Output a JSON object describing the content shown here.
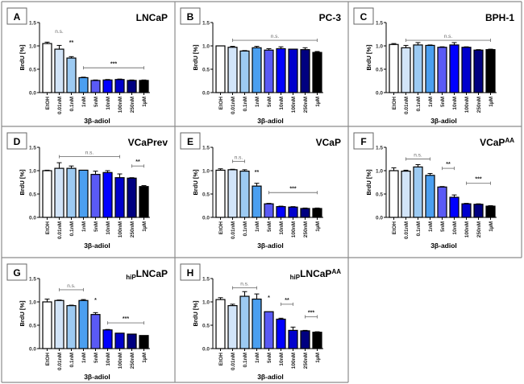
{
  "figure": {
    "bar_colors": [
      "#ffffff",
      "#d2e4f8",
      "#9ccaf2",
      "#4b9ff0",
      "#5a5af5",
      "#0000ff",
      "#0000cc",
      "#000080",
      "#000000"
    ],
    "frame_color": "#8c8c8c"
  },
  "chart_data": [
    {
      "type": "bar",
      "panel": "A",
      "title": "LNCaP",
      "title_sub": "",
      "title_sup": "",
      "xlabel": "3β-adiol",
      "ylabel": "BrdU [%]",
      "ylim": [
        0,
        1.5
      ],
      "yticks": [
        "0.0",
        "0.5",
        "1.0",
        "1.5"
      ],
      "categories": [
        "EtOH",
        "0.01nM",
        "0.1nM",
        "1nM",
        "5nM",
        "10nM",
        "100nM",
        "250nM",
        "1µM"
      ],
      "values": [
        1.05,
        0.93,
        0.74,
        0.32,
        0.26,
        0.27,
        0.28,
        0.26,
        0.26
      ],
      "errors": [
        0.03,
        0.08,
        0.03,
        0.01,
        0.01,
        0.01,
        0.01,
        0.01,
        0.01
      ],
      "annotations": [
        {
          "text": "n.s.",
          "from": 1,
          "to": 1,
          "y": 1.22,
          "bracket": false
        },
        {
          "text": "**",
          "from": 2,
          "to": 2,
          "y": 0.98,
          "bracket": false
        },
        {
          "text": "***",
          "from": 3,
          "to": 8,
          "y": 0.53,
          "bracket": true
        }
      ]
    },
    {
      "type": "bar",
      "panel": "B",
      "title": "PC-3",
      "title_sub": "",
      "title_sup": "",
      "xlabel": "3β-adiol",
      "ylabel": "BrdU [%]",
      "ylim": [
        0,
        1.5
      ],
      "yticks": [
        "0.0",
        "0.5",
        "1.0",
        "1.5"
      ],
      "categories": [
        "EtOH",
        "0.01nM",
        "0.1nM",
        "1nM",
        "5nM",
        "10nM",
        "100nM",
        "250nM",
        "1µM"
      ],
      "values": [
        1.0,
        0.97,
        0.89,
        0.96,
        0.91,
        0.94,
        0.93,
        0.92,
        0.86
      ],
      "errors": [
        0.0,
        0.02,
        0.01,
        0.03,
        0.03,
        0.04,
        0.0,
        0.04,
        0.02
      ],
      "annotations": [
        {
          "text": "n.s.",
          "from": 1,
          "to": 8,
          "y": 1.12,
          "bracket": true
        }
      ]
    },
    {
      "type": "bar",
      "panel": "C",
      "title": "BPH-1",
      "title_sub": "",
      "title_sup": "",
      "xlabel": "3β-adiol",
      "ylabel": "BrdU [%]",
      "ylim": [
        0,
        1.5
      ],
      "yticks": [
        "0.0",
        "0.5",
        "1.0",
        "1.5"
      ],
      "categories": [
        "EtOH",
        "0.01nM",
        "0.1nM",
        "1nM",
        "5nM",
        "10nM",
        "100nM",
        "250nM",
        "1µM"
      ],
      "values": [
        1.03,
        0.96,
        1.02,
        1.01,
        0.97,
        1.02,
        0.97,
        0.91,
        0.92
      ],
      "errors": [
        0.02,
        0.05,
        0.05,
        0.01,
        0.01,
        0.05,
        0.01,
        0.01,
        0.01
      ],
      "annotations": [
        {
          "text": "n.s.",
          "from": 1,
          "to": 8,
          "y": 1.12,
          "bracket": true
        }
      ]
    },
    {
      "type": "bar",
      "panel": "D",
      "title": "VCaPrev",
      "title_sub": "",
      "title_sup": "",
      "xlabel": "3β-adiol",
      "ylabel": "BrdU [%]",
      "ylim": [
        0,
        1.5
      ],
      "yticks": [
        "0.0",
        "0.5",
        "1.0",
        "1.5"
      ],
      "categories": [
        "EtOH",
        "0.01nM",
        "0.1nM",
        "1nM",
        "5nM",
        "10nM",
        "100nM",
        "250nM",
        "1µM"
      ],
      "values": [
        1.0,
        1.05,
        1.05,
        1.01,
        0.92,
        0.96,
        0.85,
        0.84,
        0.66
      ],
      "errors": [
        0.01,
        0.12,
        0.05,
        0.0,
        0.07,
        0.04,
        0.08,
        0.01,
        0.02
      ],
      "annotations": [
        {
          "text": "n.s.",
          "from": 1,
          "to": 6,
          "y": 1.3,
          "bracket": true
        },
        {
          "text": "**",
          "from": 7,
          "to": 8,
          "y": 1.1,
          "bracket": true
        }
      ]
    },
    {
      "type": "bar",
      "panel": "E",
      "title": "VCaP",
      "title_sub": "",
      "title_sup": "",
      "xlabel": "3β-adiol",
      "ylabel": "BrdU [%]",
      "ylim": [
        0,
        1.5
      ],
      "yticks": [
        "0.0",
        "0.5",
        "1.0",
        "1.5"
      ],
      "categories": [
        "EtOH",
        "0.01nM",
        "0.1nM",
        "1nM",
        "5nM",
        "10nM",
        "100nM",
        "250nM",
        "1µM"
      ],
      "values": [
        1.01,
        1.02,
        0.99,
        0.67,
        0.29,
        0.23,
        0.22,
        0.19,
        0.19
      ],
      "errors": [
        0.03,
        0.01,
        0.03,
        0.06,
        0.01,
        0.01,
        0.01,
        0.01,
        0.01
      ],
      "annotations": [
        {
          "text": "n.s.",
          "from": 1,
          "to": 2,
          "y": 1.2,
          "bracket": true
        },
        {
          "text": "**",
          "from": 3,
          "to": 3,
          "y": 0.88,
          "bracket": false
        },
        {
          "text": "***",
          "from": 4,
          "to": 8,
          "y": 0.53,
          "bracket": true
        }
      ]
    },
    {
      "type": "bar",
      "panel": "F",
      "title": "VCaP",
      "title_sub": "",
      "title_sup": "AA",
      "xlabel": "3β-adiol",
      "ylabel": "BrdU [%]",
      "ylim": [
        0,
        1.5
      ],
      "yticks": [
        "0.0",
        "0.5",
        "1.0",
        "1.5"
      ],
      "categories": [
        "EtOH",
        "0.01nM",
        "0.1nM",
        "1nM",
        "5nM",
        "10nM",
        "100nM",
        "250nM",
        "1µM"
      ],
      "values": [
        1.0,
        0.99,
        1.08,
        0.9,
        0.65,
        0.43,
        0.29,
        0.28,
        0.24
      ],
      "errors": [
        0.06,
        0.02,
        0.05,
        0.04,
        0.01,
        0.05,
        0.01,
        0.01,
        0.01
      ],
      "annotations": [
        {
          "text": "n.s.",
          "from": 1,
          "to": 3,
          "y": 1.25,
          "bracket": true
        },
        {
          "text": "**",
          "from": 4,
          "to": 5,
          "y": 1.05,
          "bracket": true
        },
        {
          "text": "***",
          "from": 6,
          "to": 8,
          "y": 0.73,
          "bracket": true
        }
      ]
    },
    {
      "type": "bar",
      "panel": "G",
      "title": "LNCaP",
      "title_sub": "hiP",
      "title_sup": "",
      "xlabel": "3β-adiol",
      "ylabel": "BrdU [%]",
      "ylim": [
        0,
        1.5
      ],
      "yticks": [
        "0.0",
        "0.5",
        "1.0",
        "1.5"
      ],
      "categories": [
        "EtOH",
        "0.01nM",
        "0.1nM",
        "1nM",
        "5nM",
        "10nM",
        "100nM",
        "250nM",
        "1µM"
      ],
      "values": [
        1.0,
        1.03,
        0.92,
        1.03,
        0.73,
        0.4,
        0.33,
        0.31,
        0.28
      ],
      "errors": [
        0.06,
        0.01,
        0.01,
        0.02,
        0.04,
        0.01,
        0.0,
        0.0,
        0.0
      ],
      "annotations": [
        {
          "text": "n.s.",
          "from": 1,
          "to": 3,
          "y": 1.26,
          "bracket": true
        },
        {
          "text": "*",
          "from": 4,
          "to": 4,
          "y": 0.95,
          "bracket": false
        },
        {
          "text": "***",
          "from": 5,
          "to": 8,
          "y": 0.55,
          "bracket": true
        }
      ]
    },
    {
      "type": "bar",
      "panel": "H",
      "title": "LNCaP",
      "title_sub": "hiP",
      "title_sup": "AA",
      "xlabel": "3β-adiol",
      "ylabel": "BrdU [%]",
      "ylim": [
        0,
        1.5
      ],
      "yticks": [
        "0.0",
        "0.5",
        "1.0",
        "1.5"
      ],
      "categories": [
        "EtOH",
        "0.01nM",
        "0.1nM",
        "1nM",
        "5nM",
        "10nM",
        "100nM",
        "250nM",
        "1µM"
      ],
      "values": [
        1.05,
        0.92,
        1.12,
        1.06,
        0.79,
        0.63,
        0.39,
        0.38,
        0.35
      ],
      "errors": [
        0.04,
        0.03,
        0.1,
        0.11,
        0.0,
        0.02,
        0.07,
        0.01,
        0.01
      ],
      "annotations": [
        {
          "text": "n.s.",
          "from": 1,
          "to": 3,
          "y": 1.3,
          "bracket": true
        },
        {
          "text": "*",
          "from": 4,
          "to": 4,
          "y": 1.0,
          "bracket": false
        },
        {
          "text": "**",
          "from": 5,
          "to": 6,
          "y": 0.95,
          "bracket": true
        },
        {
          "text": "***",
          "from": 7,
          "to": 8,
          "y": 0.68,
          "bracket": true
        }
      ]
    }
  ]
}
